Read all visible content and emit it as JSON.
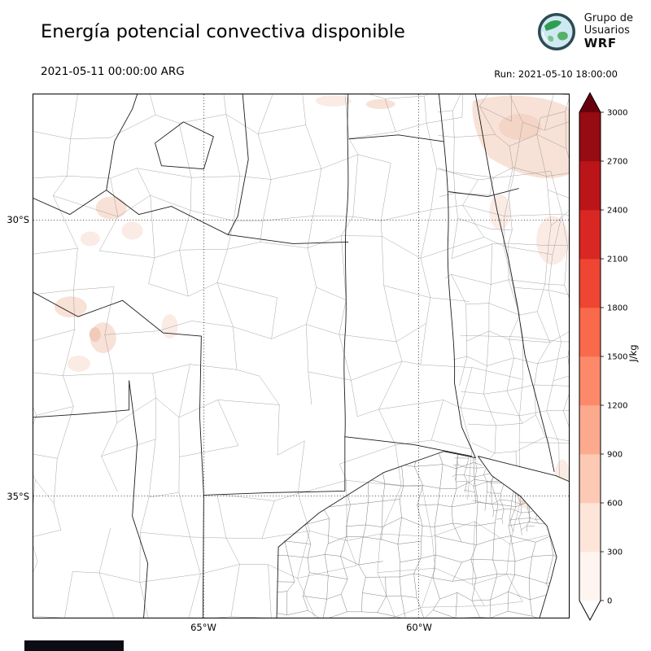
{
  "header": {
    "title": "Energía potencial convectiva disponible",
    "logo": {
      "line1": "Grupo de",
      "line2": "Usuarios",
      "line3": "WRF"
    }
  },
  "subheader": {
    "valid_time": "2021-05-11 00:00:00 ARG",
    "run": "Run: 2021-05-10 18:00:00"
  },
  "axes": {
    "x_ticks": [
      "65°W",
      "60°W"
    ],
    "y_ticks": [
      "30°S",
      "35°S"
    ]
  },
  "chart_data": {
    "type": "heatmap",
    "title": "Energía potencial convectiva disponible",
    "valid_time": "2021-05-11 00:00:00 ARG",
    "run": "Run: 2021-05-10 18:00:00",
    "x_tick_labels": [
      "65°W",
      "60°W"
    ],
    "y_tick_labels": [
      "30°S",
      "35°S"
    ],
    "gridline_style": "dotted",
    "field_summary": "CAPE near 0 J/kg over most of the domain; faint patches below 300 J/kg in the northeast corner, along the west (La Rioja / San Juan) and near the Atlantic coast",
    "colorbar": {
      "label": "J/kg",
      "ticks": [
        0,
        300,
        600,
        900,
        1200,
        1500,
        1800,
        2100,
        2400,
        2700,
        3000
      ],
      "segment_colors": [
        "#fff5f0",
        "#fee5d9",
        "#fcc9b5",
        "#fcaa8e",
        "#fc8a6a",
        "#f9694c",
        "#ef4533",
        "#d92723",
        "#bb151a",
        "#970b13"
      ],
      "under_arrow_color": "#ffffff",
      "over_arrow_color": "#67000d"
    }
  }
}
